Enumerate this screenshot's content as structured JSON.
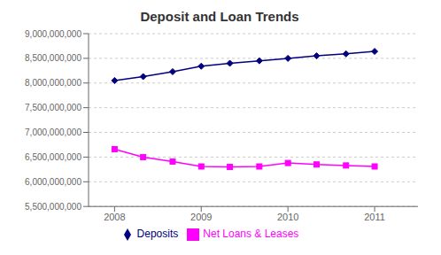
{
  "chart_data": {
    "type": "line",
    "title": "Deposit and Loan Trends",
    "x": [
      2008,
      2008.33,
      2008.67,
      2009,
      2009.33,
      2009.67,
      2010,
      2010.33,
      2010.67,
      2011
    ],
    "series": [
      {
        "name": "Deposits",
        "color": "#000080",
        "marker": "diamond",
        "line_style": "solid",
        "values": [
          8050000000,
          8130000000,
          8230000000,
          8340000000,
          8400000000,
          8450000000,
          8500000000,
          8550000000,
          8590000000,
          8640000000
        ]
      },
      {
        "name": "Net Loans & Leases",
        "color": "#FF00FF",
        "marker": "square",
        "line_style": "solid",
        "values": [
          6660000000,
          6500000000,
          6410000000,
          6310000000,
          6300000000,
          6310000000,
          6380000000,
          6350000000,
          6330000000,
          6310000000
        ]
      }
    ],
    "xlim": [
      2007.7,
      2011.5
    ],
    "xticks": [
      2008,
      2009,
      2010,
      2011
    ],
    "ylim": [
      5500000000,
      9000000000
    ],
    "yticks": [
      {
        "value": 5500000000,
        "label": "5,500,000,000"
      },
      {
        "value": 6000000000,
        "label": "6,000,000,000"
      },
      {
        "value": 6500000000,
        "label": "6,500,000,000"
      },
      {
        "value": 7000000000,
        "label": "7,000,000,000"
      },
      {
        "value": 7500000000,
        "label": "7,500,000,000"
      },
      {
        "value": 8000000000,
        "label": "8,000,000,000"
      },
      {
        "value": 8500000000,
        "label": "8,500,000,000"
      },
      {
        "value": 9000000000,
        "label": "9,000,000,000"
      }
    ],
    "grid": true,
    "legend": "bottom"
  }
}
